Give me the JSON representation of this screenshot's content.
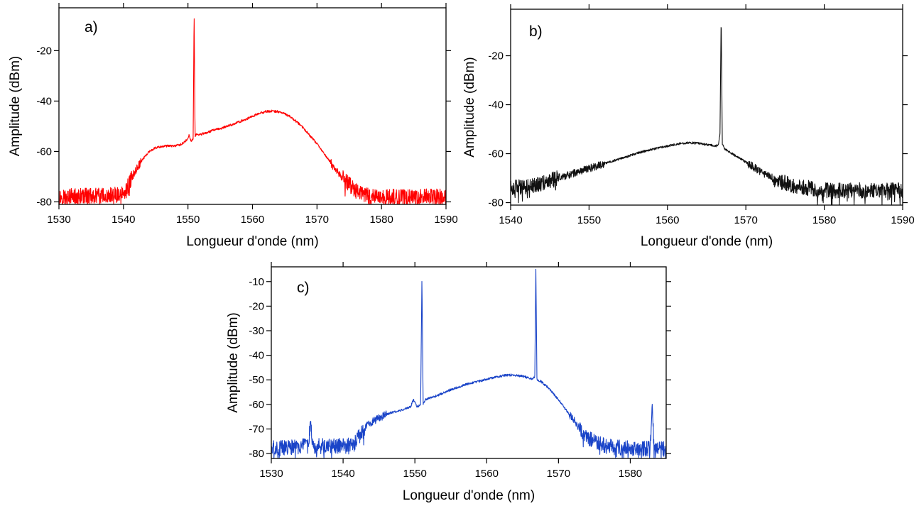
{
  "chart_data": [
    {
      "type": "line",
      "panel_label": "a)",
      "xlabel": "Longueur d'onde (nm)",
      "ylabel": "Amplitude (dBm)",
      "xlim": [
        1530,
        1590
      ],
      "ylim": [
        -81,
        -3
      ],
      "xticks": [
        1530,
        1540,
        1550,
        1560,
        1570,
        1580,
        1590
      ],
      "yticks": [
        -80,
        -60,
        -40,
        -20
      ],
      "color": "#ff0000",
      "grid": false,
      "series": [
        {
          "x": [
            1530,
            1538,
            1540.2,
            1541,
            1542,
            1543,
            1544,
            1545,
            1546,
            1547,
            1548,
            1549,
            1549.6,
            1549.9,
            1550.2,
            1550.5,
            1550.8,
            1550.95,
            1551.1,
            1551.3,
            1551.6,
            1552,
            1553,
            1554,
            1555,
            1556,
            1557,
            1558,
            1559,
            1560,
            1561,
            1562,
            1563,
            1564,
            1565,
            1566,
            1567,
            1568,
            1569,
            1570,
            1571,
            1572,
            1573,
            1574,
            1575,
            1576,
            1577,
            1578,
            1579,
            1580,
            1585,
            1590
          ],
          "y": [
            -78,
            -77.5,
            -77,
            -72,
            -67,
            -63,
            -60,
            -58.5,
            -58,
            -57.8,
            -57.8,
            -57.2,
            -56,
            -55,
            -53.5,
            -56,
            -55,
            -4,
            -54,
            -53,
            -53.5,
            -53.2,
            -52.5,
            -51.5,
            -51,
            -50,
            -49.2,
            -48.2,
            -47.2,
            -46,
            -45,
            -44.2,
            -44,
            -44.2,
            -45,
            -46.5,
            -48.5,
            -51,
            -54,
            -57,
            -60.5,
            -64,
            -67.5,
            -70.5,
            -73,
            -75.5,
            -77,
            -77.8,
            -78,
            -78,
            -78,
            -78
          ]
        }
      ]
    },
    {
      "type": "line",
      "panel_label": "b)",
      "xlabel": "Longueur d'onde (nm)",
      "ylabel": "Amplitude (dBm)",
      "xlim": [
        1540,
        1590
      ],
      "ylim": [
        -81,
        -1
      ],
      "xticks": [
        1540,
        1550,
        1560,
        1570,
        1580,
        1590
      ],
      "yticks": [
        -80,
        -60,
        -40,
        -20
      ],
      "color": "#111111",
      "grid": false,
      "series": [
        {
          "x": [
            1540,
            1543,
            1545,
            1547,
            1549,
            1551,
            1553,
            1555,
            1557,
            1559,
            1561,
            1562.5,
            1564,
            1565.5,
            1566.2,
            1566.5,
            1566.7,
            1566.85,
            1567,
            1567.3,
            1567.8,
            1568.5,
            1570,
            1572,
            1574,
            1576,
            1578,
            1580,
            1585,
            1590
          ],
          "y": [
            -74,
            -73,
            -71,
            -69,
            -67,
            -65,
            -63,
            -61,
            -59,
            -57.5,
            -56.2,
            -55.5,
            -55.8,
            -56.5,
            -57,
            -56,
            -52,
            -3,
            -56,
            -58,
            -59,
            -60.5,
            -63.5,
            -67.5,
            -71,
            -73,
            -74,
            -75,
            -75,
            -75
          ]
        }
      ]
    },
    {
      "type": "line",
      "panel_label": "c)",
      "xlabel": "Longueur d'onde (nm)",
      "ylabel": "Amplitude (dBm)",
      "xlim": [
        1530,
        1585
      ],
      "ylim": [
        -82,
        -4
      ],
      "xticks": [
        1530,
        1540,
        1550,
        1560,
        1570,
        1580
      ],
      "yticks": [
        -80,
        -70,
        -60,
        -50,
        -40,
        -30,
        -20,
        -10
      ],
      "color": "#1a44c8",
      "grid": false,
      "series": [
        {
          "x": [
            1530,
            1535.2,
            1535.45,
            1535.7,
            1540,
            1541.5,
            1542.5,
            1543.5,
            1545,
            1546.5,
            1548,
            1549.4,
            1549.8,
            1550.3,
            1550.8,
            1550.98,
            1551.15,
            1551.5,
            1552,
            1553,
            1555,
            1557,
            1559,
            1561,
            1562.5,
            1563.5,
            1565,
            1566.3,
            1566.7,
            1566.85,
            1567,
            1567.5,
            1568.5,
            1570,
            1571.5,
            1573,
            1574.5,
            1576,
            1578,
            1580,
            1582.8,
            1583.05,
            1583.3,
            1585
          ],
          "y": [
            -78,
            -77,
            -66,
            -77,
            -77,
            -76.5,
            -72,
            -68,
            -65.5,
            -63.5,
            -62.5,
            -61,
            -58,
            -61,
            -60,
            -8,
            -60,
            -58,
            -57.5,
            -56.5,
            -54,
            -52,
            -50.5,
            -49,
            -48.2,
            -48,
            -48.5,
            -49.5,
            -49,
            -5,
            -50,
            -50.5,
            -53,
            -58,
            -64,
            -70,
            -74,
            -76.5,
            -77.5,
            -78,
            -78,
            -59,
            -78,
            -78
          ]
        }
      ]
    }
  ]
}
